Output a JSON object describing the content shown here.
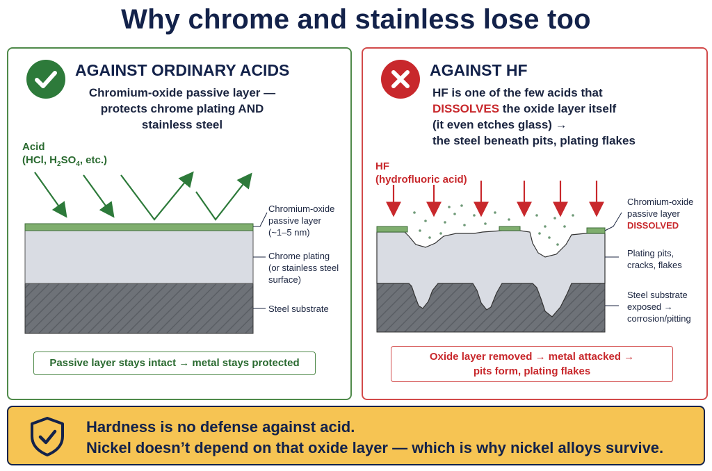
{
  "title": "Why chrome and stainless lose too",
  "left_panel": {
    "heading": "AGAINST ORDINARY ACIDS",
    "status_icon": "check-icon",
    "description_lines": [
      "Chromium-oxide passive layer —",
      "protects chrome plating AND",
      "stainless steel"
    ],
    "acid_label_line1": "Acid",
    "acid_label_line2_parts": [
      "(HCl, H",
      "2",
      "SO",
      "4",
      ", etc.)"
    ],
    "callout_oxide": [
      "Chromium-oxide",
      "passive layer",
      "(~1–5 nm)"
    ],
    "callout_plating": [
      "Chrome plating",
      "(or stainless steel",
      "surface)"
    ],
    "callout_substrate": "Steel substrate",
    "result": "Passive layer stays intact → metal stays protected",
    "colors": {
      "accent": "#2d7a3a",
      "oxide_layer": "#7fae6e",
      "plating": "#d9dce3",
      "substrate": "#6e7278"
    }
  },
  "right_panel": {
    "heading": "AGAINST HF",
    "status_icon": "x-icon",
    "description": {
      "line1": "HF is one of the few acids that",
      "line2_red": "DISSOLVES",
      "line2_rest": " the oxide layer itself",
      "line3": "(it even etches glass) →",
      "line4": "the steel beneath pits, plating flakes"
    },
    "hf_label_line1": "HF",
    "hf_label_line2": "(hydrofluoric acid)",
    "callout_oxide": [
      "Chromium-oxide",
      "passive layer"
    ],
    "callout_oxide_red": "DISSOLVED",
    "callout_pits": [
      "Plating pits,",
      "cracks, flakes"
    ],
    "callout_substrate": [
      "Steel substrate",
      "exposed →",
      "corrosion/pitting"
    ],
    "result_line1": "Oxide layer removed → metal attacked →",
    "result_line2": "pits form, plating flakes",
    "colors": {
      "accent": "#c8282c"
    }
  },
  "banner": {
    "icon": "shield-check-icon",
    "line1": "Hardness is no defense against acid.",
    "line2": "Nickel doesn’t depend on that oxide layer — which is why nickel alloys survive.",
    "colors": {
      "background": "#f6c453",
      "border": "#13224a"
    }
  }
}
